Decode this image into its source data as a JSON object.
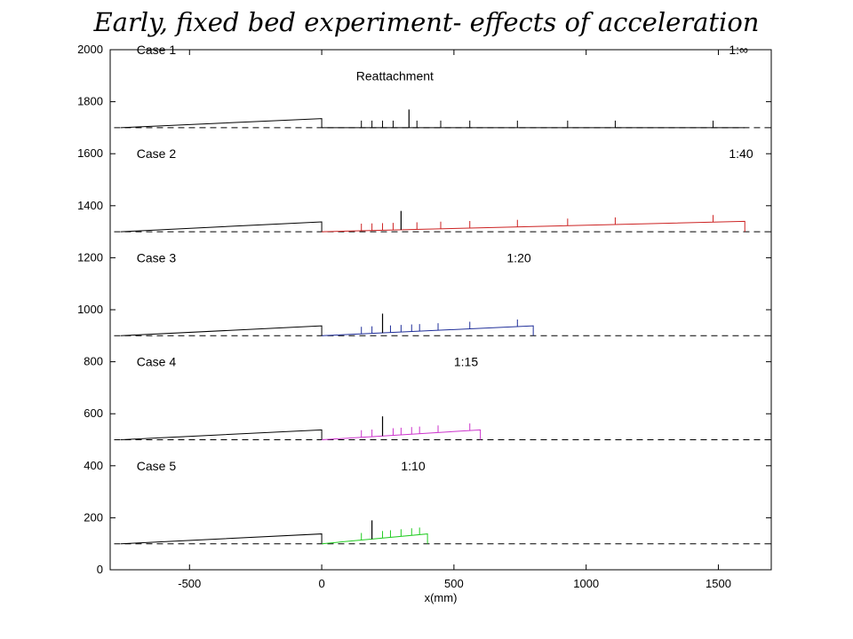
{
  "title": "Early, fixed bed experiment- effects of acceleration",
  "chart_data": {
    "type": "line",
    "title": "Early, fixed bed experiment- effects of acceleration",
    "xlabel": "x(mm)",
    "ylabel": "",
    "xlim": [
      -800,
      1700
    ],
    "ylim": [
      0,
      2000
    ],
    "xticks": [
      -500,
      0,
      500,
      1000,
      1500
    ],
    "yticks": [
      0,
      200,
      400,
      600,
      800,
      1000,
      1200,
      1400,
      1600,
      1800,
      2000
    ],
    "grid": false,
    "reattachment_label": "Reattachment",
    "cases": [
      {
        "name": "Case 1",
        "slope_label": "1:∞",
        "color": "#000000",
        "baseline": 1700,
        "upstream_top": 1735,
        "downstream_start_top": 1700,
        "downstream_end_x": 1600,
        "downstream_end_top": 1700,
        "ticks_x": [
          150,
          190,
          230,
          270,
          360,
          450,
          560,
          740,
          930,
          1110,
          1480
        ],
        "reattachment_x": 330,
        "reattachment_top": 1770
      },
      {
        "name": "Case 2",
        "slope_label": "1:40",
        "color": "#cc2222",
        "baseline": 1300,
        "upstream_top": 1338,
        "downstream_start_top": 1300,
        "downstream_end_x": 1600,
        "downstream_end_top": 1340,
        "ticks_x": [
          150,
          190,
          230,
          270,
          360,
          450,
          560,
          740,
          930,
          1110,
          1480
        ],
        "reattachment_x": 300,
        "reattachment_top": 1380
      },
      {
        "name": "Case 3",
        "slope_label": "1:20",
        "color": "#1f2e99",
        "baseline": 900,
        "upstream_top": 938,
        "downstream_start_top": 900,
        "downstream_end_x": 800,
        "downstream_end_top": 938,
        "ticks_x": [
          150,
          190,
          260,
          300,
          340,
          370,
          440,
          560,
          740
        ],
        "reattachment_x": 230,
        "reattachment_top": 985
      },
      {
        "name": "Case 4",
        "slope_label": "1:15",
        "color": "#cc33cc",
        "baseline": 500,
        "upstream_top": 538,
        "downstream_start_top": 500,
        "downstream_end_x": 600,
        "downstream_end_top": 538,
        "ticks_x": [
          150,
          190,
          270,
          300,
          340,
          370,
          440,
          560
        ],
        "reattachment_x": 230,
        "reattachment_top": 590
      },
      {
        "name": "Case 5",
        "slope_label": "1:10",
        "color": "#22cc22",
        "baseline": 100,
        "upstream_top": 138,
        "downstream_start_top": 100,
        "downstream_end_x": 400,
        "downstream_end_top": 138,
        "ticks_x": [
          150,
          230,
          260,
          300,
          340,
          370
        ],
        "reattachment_x": 190,
        "reattachment_top": 190
      }
    ]
  }
}
